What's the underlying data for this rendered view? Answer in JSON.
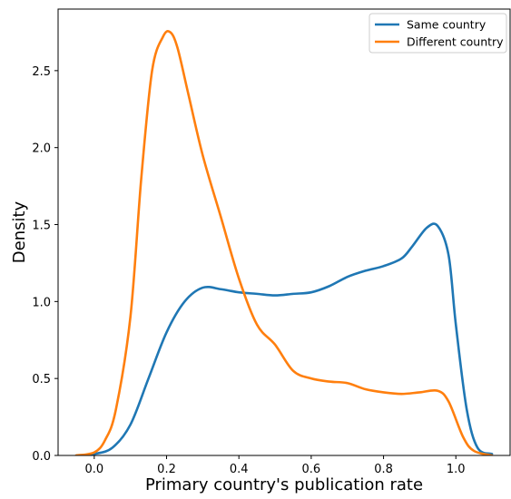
{
  "chart_data": {
    "type": "line",
    "title": "",
    "xlabel": "Primary country's publication rate",
    "ylabel": "Density",
    "xlim": [
      -0.1,
      1.15
    ],
    "ylim": [
      0.0,
      2.9
    ],
    "xticks": [
      0.0,
      0.2,
      0.4,
      0.6,
      0.8,
      1.0
    ],
    "xtick_labels": [
      "0.0",
      "0.2",
      "0.4",
      "0.6",
      "0.8",
      "1.0"
    ],
    "yticks": [
      0.0,
      0.5,
      1.0,
      1.5,
      2.0,
      2.5
    ],
    "ytick_labels": [
      "0.0",
      "0.5",
      "1.0",
      "1.5",
      "2.0",
      "2.5"
    ],
    "grid": false,
    "legend": {
      "position": "top-right"
    },
    "series": [
      {
        "name": "Same country",
        "color": "#1f77b4",
        "x": [
          -0.05,
          0.0,
          0.05,
          0.1,
          0.15,
          0.2,
          0.25,
          0.3,
          0.35,
          0.4,
          0.45,
          0.5,
          0.55,
          0.6,
          0.65,
          0.7,
          0.75,
          0.8,
          0.85,
          0.88,
          0.92,
          0.95,
          0.98,
          1.0,
          1.03,
          1.06,
          1.1
        ],
        "y": [
          0.0,
          0.01,
          0.05,
          0.2,
          0.5,
          0.8,
          1.0,
          1.09,
          1.08,
          1.06,
          1.05,
          1.04,
          1.05,
          1.06,
          1.1,
          1.16,
          1.2,
          1.23,
          1.28,
          1.36,
          1.48,
          1.49,
          1.3,
          0.85,
          0.3,
          0.05,
          0.01
        ]
      },
      {
        "name": "Different country",
        "color": "#ff7f0e",
        "x": [
          -0.05,
          0.0,
          0.03,
          0.06,
          0.1,
          0.13,
          0.16,
          0.19,
          0.21,
          0.23,
          0.26,
          0.3,
          0.35,
          0.4,
          0.45,
          0.5,
          0.55,
          0.6,
          0.65,
          0.7,
          0.75,
          0.8,
          0.85,
          0.9,
          0.95,
          0.98,
          1.02,
          1.05,
          1.1
        ],
        "y": [
          0.0,
          0.02,
          0.1,
          0.3,
          0.9,
          1.8,
          2.5,
          2.72,
          2.75,
          2.65,
          2.35,
          1.95,
          1.55,
          1.15,
          0.85,
          0.72,
          0.55,
          0.5,
          0.48,
          0.47,
          0.43,
          0.41,
          0.4,
          0.41,
          0.42,
          0.35,
          0.12,
          0.03,
          0.0
        ]
      }
    ]
  }
}
